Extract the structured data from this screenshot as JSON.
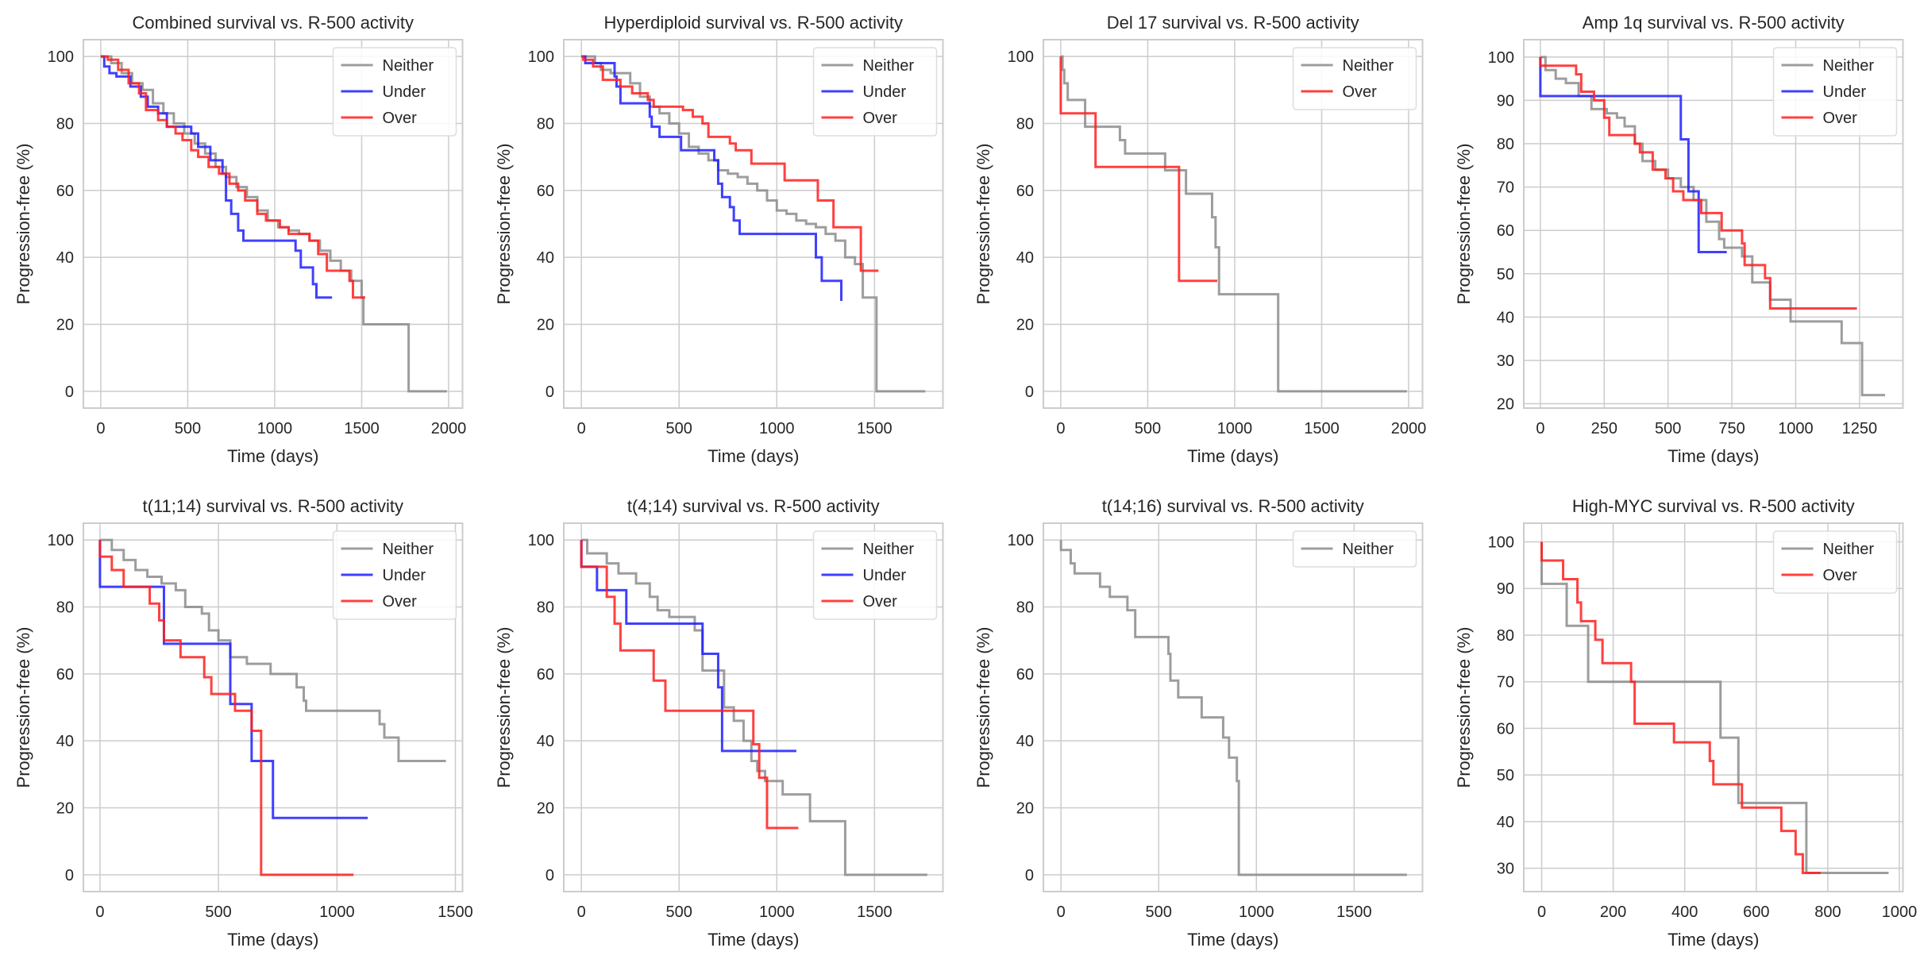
{
  "chart_data": [
    {
      "type": "line",
      "title": "Combined survival vs. R-500 activity",
      "xlabel": "Time (days)",
      "ylabel": "Progression-free (%)",
      "xlim": [
        -100,
        2080
      ],
      "ylim": [
        -5,
        105
      ],
      "xticks": [
        0,
        500,
        1000,
        1500,
        2000
      ],
      "yticks": [
        0,
        20,
        40,
        60,
        80,
        100
      ],
      "grid": true,
      "legend": "top-right",
      "series": [
        {
          "name": "Neither",
          "color": "#8c8c8c",
          "x": [
            0,
            60,
            120,
            180,
            240,
            300,
            360,
            420,
            480,
            540,
            600,
            660,
            720,
            780,
            840,
            900,
            960,
            1020,
            1080,
            1140,
            1200,
            1260,
            1320,
            1380,
            1440,
            1500,
            1510,
            1760,
            1770,
            1990
          ],
          "y": [
            100,
            98,
            95,
            92,
            90,
            86,
            83,
            80,
            77,
            74,
            71,
            67,
            64,
            61,
            58,
            54,
            51,
            49,
            48,
            47,
            45,
            42,
            39,
            36,
            33,
            28,
            20,
            20,
            0,
            0
          ]
        },
        {
          "name": "Under",
          "color": "#1f1fff",
          "x": [
            0,
            20,
            50,
            90,
            170,
            230,
            270,
            330,
            380,
            410,
            520,
            560,
            630,
            700,
            720,
            750,
            790,
            820,
            1100,
            1120,
            1150,
            1220,
            1240,
            1330
          ],
          "y": [
            100,
            97,
            95,
            94,
            91,
            88,
            85,
            83,
            79,
            79,
            77,
            73,
            69,
            65,
            57,
            53,
            48,
            45,
            45,
            42,
            37,
            32,
            28,
            28
          ],
          "step": true
        },
        {
          "name": "Over",
          "color": "#ff1f1f",
          "x": [
            0,
            40,
            100,
            160,
            220,
            260,
            330,
            380,
            430,
            470,
            520,
            560,
            620,
            680,
            740,
            790,
            830,
            900,
            950,
            1030,
            1080,
            1200,
            1250,
            1300,
            1430,
            1450,
            1520
          ],
          "y": [
            100,
            99,
            96,
            92,
            89,
            84,
            81,
            79,
            77,
            75,
            72,
            70,
            67,
            65,
            62,
            60,
            57,
            53,
            51,
            49,
            47,
            45,
            41,
            36,
            33,
            28,
            28
          ],
          "step": true
        }
      ]
    },
    {
      "type": "line",
      "title": "Hyperdiploid survival vs. R-500 activity",
      "xlabel": "Time (days)",
      "ylabel": "Progression-free (%)",
      "xlim": [
        -90,
        1850
      ],
      "ylim": [
        -5,
        105
      ],
      "xticks": [
        0,
        500,
        1000,
        1500
      ],
      "yticks": [
        0,
        20,
        40,
        60,
        80,
        100
      ],
      "grid": true,
      "legend": "top-right",
      "series": [
        {
          "name": "Neither",
          "color": "#8c8c8c",
          "x": [
            0,
            70,
            100,
            150,
            250,
            300,
            350,
            400,
            450,
            500,
            550,
            600,
            650,
            700,
            750,
            800,
            850,
            900,
            950,
            1000,
            1050,
            1100,
            1150,
            1200,
            1250,
            1300,
            1350,
            1400,
            1440,
            1500,
            1510,
            1760
          ],
          "y": [
            100,
            98,
            96,
            95,
            92,
            88,
            85,
            83,
            80,
            77,
            73,
            71,
            69,
            66,
            65,
            64,
            62,
            60,
            57,
            54,
            53,
            51,
            50,
            49,
            47,
            45,
            40,
            38,
            28,
            28,
            0,
            0
          ]
        },
        {
          "name": "Under",
          "color": "#1f1fff",
          "x": [
            0,
            20,
            170,
            180,
            200,
            280,
            350,
            360,
            400,
            510,
            680,
            700,
            720,
            760,
            780,
            810,
            1200,
            1230,
            1330
          ],
          "y": [
            100,
            98,
            94,
            91,
            86,
            86,
            82,
            79,
            76,
            72,
            69,
            62,
            58,
            55,
            51,
            47,
            40,
            33,
            27
          ]
        },
        {
          "name": "Over",
          "color": "#ff1f1f",
          "x": [
            0,
            10,
            60,
            110,
            200,
            260,
            340,
            370,
            520,
            570,
            620,
            650,
            760,
            790,
            870,
            1040,
            1210,
            1290,
            1430,
            1520
          ],
          "y": [
            100,
            99,
            97,
            93,
            91,
            89,
            87,
            85,
            84,
            82,
            80,
            76,
            74,
            72,
            68,
            63,
            57,
            49,
            36,
            36
          ]
        }
      ]
    },
    {
      "type": "line",
      "title": "Del 17 survival vs. R-500 activity",
      "xlabel": "Time (days)",
      "ylabel": "Progression-free (%)",
      "xlim": [
        -100,
        2080
      ],
      "ylim": [
        -5,
        105
      ],
      "xticks": [
        0,
        500,
        1000,
        1500,
        2000
      ],
      "yticks": [
        0,
        20,
        40,
        60,
        80,
        100
      ],
      "grid": true,
      "legend": "top-right",
      "series": [
        {
          "name": "Neither",
          "color": "#8c8c8c",
          "x": [
            0,
            10,
            20,
            40,
            140,
            340,
            370,
            600,
            720,
            870,
            890,
            910,
            1250,
            1990
          ],
          "y": [
            100,
            96,
            92,
            87,
            79,
            75,
            71,
            66,
            59,
            52,
            43,
            29,
            0,
            0
          ]
        },
        {
          "name": "Over",
          "color": "#ff1f1f",
          "x": [
            0,
            200,
            680,
            900
          ],
          "y": [
            83,
            67,
            33,
            33
          ]
        }
      ]
    },
    {
      "type": "line",
      "title": "Amp 1q survival vs. R-500 activity",
      "xlabel": "Time (days)",
      "ylabel": "Progression-free (%)",
      "xlim": [
        -65,
        1420
      ],
      "ylim": [
        19,
        104
      ],
      "xticks": [
        0,
        250,
        500,
        750,
        1000,
        1250
      ],
      "yticks": [
        20,
        30,
        40,
        50,
        60,
        70,
        80,
        90,
        100
      ],
      "grid": true,
      "legend": "top-right",
      "series": [
        {
          "name": "Neither",
          "color": "#8c8c8c",
          "x": [
            0,
            20,
            60,
            100,
            150,
            200,
            260,
            300,
            330,
            370,
            400,
            450,
            500,
            550,
            600,
            650,
            700,
            720,
            790,
            830,
            900,
            980,
            1180,
            1260,
            1350
          ],
          "y": [
            100,
            97,
            95,
            94,
            91,
            88,
            87,
            86,
            84,
            80,
            76,
            74,
            72,
            70,
            67,
            62,
            58,
            56,
            54,
            48,
            44,
            39,
            34,
            22,
            22
          ]
        },
        {
          "name": "Under",
          "color": "#1f1fff",
          "x": [
            0,
            550,
            580,
            620,
            730
          ],
          "y": [
            91,
            81,
            69,
            55,
            55
          ]
        },
        {
          "name": "Over",
          "color": "#ff1f1f",
          "x": [
            0,
            140,
            160,
            210,
            250,
            270,
            370,
            390,
            440,
            490,
            520,
            560,
            630,
            710,
            790,
            800,
            880,
            900,
            1240
          ],
          "y": [
            98,
            96,
            92,
            90,
            86,
            82,
            80,
            78,
            74,
            72,
            69,
            67,
            64,
            60,
            57,
            52,
            49,
            42,
            42
          ]
        }
      ]
    },
    {
      "type": "line",
      "title": "t(11;14) survival vs. R-500 activity",
      "xlabel": "Time (days)",
      "ylabel": "Progression-free (%)",
      "xlim": [
        -70,
        1530
      ],
      "ylim": [
        -5,
        105
      ],
      "xticks": [
        0,
        500,
        1000,
        1500
      ],
      "yticks": [
        0,
        20,
        40,
        60,
        80,
        100
      ],
      "grid": true,
      "legend": "top-right",
      "series": [
        {
          "name": "Neither",
          "color": "#8c8c8c",
          "x": [
            0,
            50,
            100,
            150,
            200,
            260,
            320,
            360,
            430,
            460,
            500,
            550,
            620,
            720,
            830,
            860,
            870,
            1180,
            1200,
            1260,
            1460
          ],
          "y": [
            100,
            97,
            94,
            91,
            89,
            87,
            85,
            80,
            78,
            73,
            70,
            65,
            63,
            60,
            56,
            52,
            49,
            45,
            41,
            34,
            34
          ]
        },
        {
          "name": "Under",
          "color": "#1f1fff",
          "x": [
            0,
            270,
            550,
            640,
            730,
            1130
          ],
          "y": [
            86,
            69,
            51,
            34,
            17,
            17
          ]
        },
        {
          "name": "Over",
          "color": "#ff1f1f",
          "x": [
            0,
            50,
            100,
            210,
            250,
            270,
            340,
            440,
            470,
            570,
            640,
            680,
            1070
          ],
          "y": [
            95,
            91,
            86,
            81,
            76,
            70,
            65,
            59,
            54,
            49,
            43,
            0,
            0
          ]
        }
      ]
    },
    {
      "type": "line",
      "title": "t(4;14) survival vs. R-500 activity",
      "xlabel": "Time (days)",
      "ylabel": "Progression-free (%)",
      "xlim": [
        -90,
        1850
      ],
      "ylim": [
        -5,
        105
      ],
      "xticks": [
        0,
        500,
        1000,
        1500
      ],
      "yticks": [
        0,
        20,
        40,
        60,
        80,
        100
      ],
      "grid": true,
      "legend": "top-right",
      "series": [
        {
          "name": "Neither",
          "color": "#8c8c8c",
          "x": [
            0,
            30,
            130,
            190,
            280,
            350,
            390,
            450,
            580,
            620,
            730,
            780,
            830,
            870,
            900,
            940,
            1030,
            1170,
            1350,
            1770
          ],
          "y": [
            100,
            96,
            93,
            90,
            87,
            83,
            79,
            77,
            73,
            61,
            50,
            46,
            40,
            34,
            31,
            28,
            24,
            16,
            0,
            0
          ]
        },
        {
          "name": "Under",
          "color": "#1f1fff",
          "x": [
            0,
            80,
            230,
            620,
            700,
            720,
            1100
          ],
          "y": [
            92,
            85,
            75,
            66,
            56,
            37,
            37
          ]
        },
        {
          "name": "Over",
          "color": "#ff1f1f",
          "x": [
            0,
            130,
            170,
            200,
            370,
            430,
            880,
            910,
            950,
            1110
          ],
          "y": [
            92,
            83,
            75,
            67,
            58,
            49,
            39,
            29,
            14,
            14
          ]
        }
      ]
    },
    {
      "type": "line",
      "title": "t(14;16) survival vs. R-500 activity",
      "xlabel": "Time (days)",
      "ylabel": "Progression-free (%)",
      "xlim": [
        -90,
        1850
      ],
      "ylim": [
        -5,
        105
      ],
      "xticks": [
        0,
        500,
        1000,
        1500
      ],
      "yticks": [
        0,
        20,
        40,
        60,
        80,
        100
      ],
      "grid": true,
      "legend": "top-right",
      "series": [
        {
          "name": "Neither",
          "color": "#8c8c8c",
          "x": [
            0,
            50,
            70,
            200,
            250,
            340,
            380,
            550,
            560,
            600,
            720,
            830,
            860,
            900,
            910,
            1770
          ],
          "y": [
            97,
            93,
            90,
            86,
            83,
            79,
            71,
            66,
            58,
            53,
            47,
            41,
            35,
            28,
            0,
            0
          ]
        }
      ]
    },
    {
      "type": "line",
      "title": "High-MYC survival vs. R-500 activity",
      "xlabel": "Time (days)",
      "ylabel": "Progression-free (%)",
      "xlim": [
        -50,
        1010
      ],
      "ylim": [
        25,
        104
      ],
      "xticks": [
        0,
        200,
        400,
        600,
        800,
        1000
      ],
      "yticks": [
        30,
        40,
        50,
        60,
        70,
        80,
        90,
        100
      ],
      "grid": true,
      "legend": "top-right",
      "series": [
        {
          "name": "Neither",
          "color": "#8c8c8c",
          "x": [
            0,
            70,
            130,
            500,
            550,
            740,
            970
          ],
          "y": [
            91,
            82,
            70,
            58,
            44,
            29,
            29
          ]
        },
        {
          "name": "Over",
          "color": "#ff1f1f",
          "x": [
            0,
            60,
            100,
            110,
            150,
            170,
            250,
            260,
            370,
            470,
            480,
            560,
            670,
            710,
            730,
            780
          ],
          "y": [
            96,
            92,
            87,
            83,
            79,
            74,
            70,
            61,
            57,
            53,
            48,
            43,
            38,
            33,
            29,
            29
          ]
        }
      ]
    }
  ]
}
